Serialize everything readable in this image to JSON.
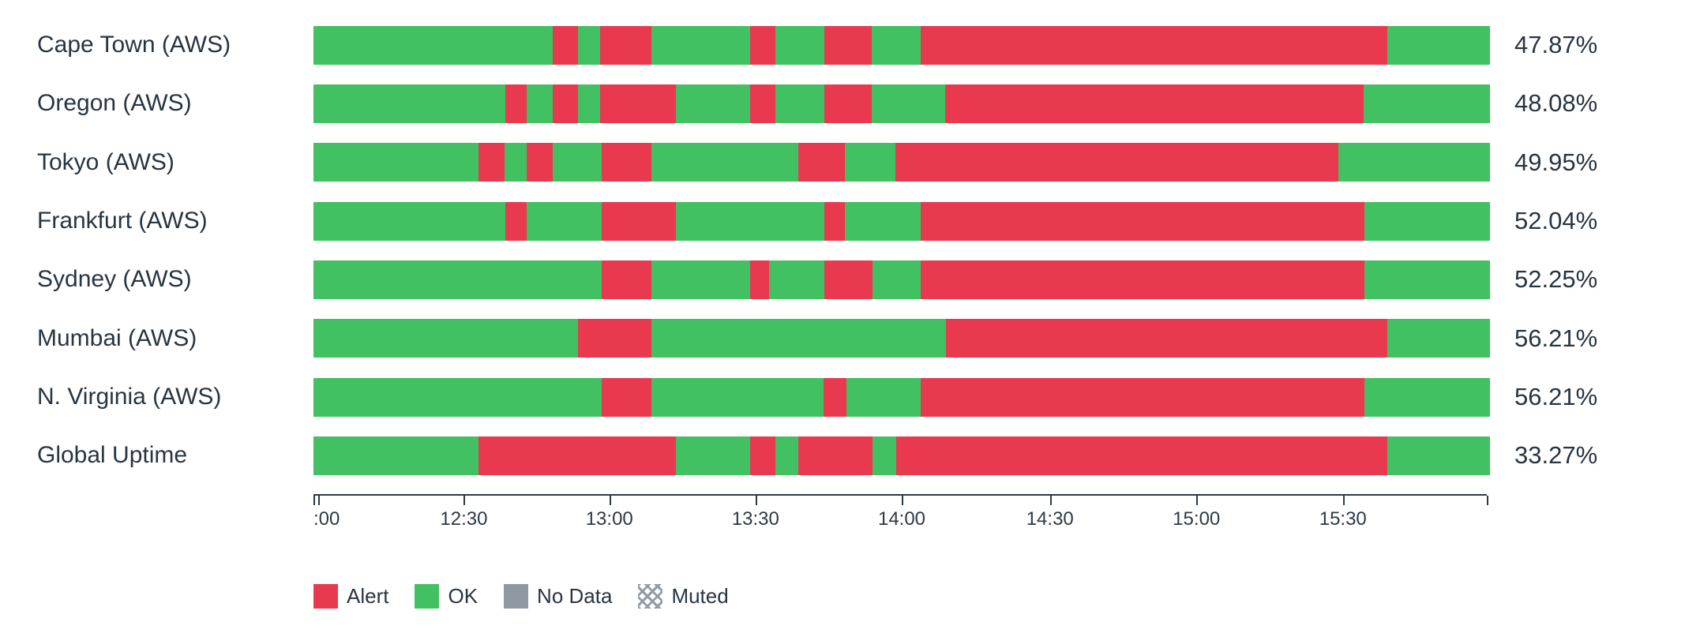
{
  "chart_data": {
    "type": "bar",
    "subtype": "status-timeline",
    "title": "",
    "xlabel": "",
    "ylabel": "",
    "x_axis": {
      "start": "12:00",
      "end": "16:00",
      "ticks": [
        {
          "pct": 0,
          "label": "",
          "cap": true
        },
        {
          "pct": 0.37,
          "label": ":00",
          "align": "start"
        },
        {
          "pct": 12.78,
          "label": "12:30"
        },
        {
          "pct": 25.15,
          "label": "13:00"
        },
        {
          "pct": 37.57,
          "label": "13:30"
        },
        {
          "pct": 50.0,
          "label": "14:00"
        },
        {
          "pct": 62.6,
          "label": "14:30"
        },
        {
          "pct": 75.05,
          "label": "15:00"
        },
        {
          "pct": 87.5,
          "label": "15:30"
        },
        {
          "pct": 99.75,
          "label": "",
          "cap": true
        }
      ]
    },
    "rows": [
      {
        "label": "Cape Town (AWS)",
        "uptime": "47.87%",
        "segments": [
          {
            "status": "ok",
            "pct": 20.33
          },
          {
            "status": "alert",
            "pct": 2.15
          },
          {
            "status": "ok",
            "pct": 1.86
          },
          {
            "status": "alert",
            "pct": 4.41
          },
          {
            "status": "ok",
            "pct": 8.35
          },
          {
            "status": "alert",
            "pct": 2.18
          },
          {
            "status": "ok",
            "pct": 4.14
          },
          {
            "status": "alert",
            "pct": 4.02
          },
          {
            "status": "ok",
            "pct": 4.17
          },
          {
            "status": "alert",
            "pct": 39.66
          },
          {
            "status": "ok",
            "pct": 8.73
          }
        ]
      },
      {
        "label": "Oregon (AWS)",
        "uptime": "48.08%",
        "segments": [
          {
            "status": "ok",
            "pct": 16.32
          },
          {
            "status": "alert",
            "pct": 1.83
          },
          {
            "status": "ok",
            "pct": 2.18
          },
          {
            "status": "alert",
            "pct": 2.15
          },
          {
            "status": "ok",
            "pct": 1.86
          },
          {
            "status": "alert",
            "pct": 6.49
          },
          {
            "status": "ok",
            "pct": 6.27
          },
          {
            "status": "alert",
            "pct": 2.18
          },
          {
            "status": "ok",
            "pct": 4.14
          },
          {
            "status": "alert",
            "pct": 4.02
          },
          {
            "status": "ok",
            "pct": 6.26
          },
          {
            "status": "alert",
            "pct": 35.59
          },
          {
            "status": "ok",
            "pct": 10.71
          }
        ]
      },
      {
        "label": "Tokyo (AWS)",
        "uptime": "49.95%",
        "segments": [
          {
            "status": "ok",
            "pct": 14.04
          },
          {
            "status": "alert",
            "pct": 2.19
          },
          {
            "status": "ok",
            "pct": 1.86
          },
          {
            "status": "alert",
            "pct": 2.24
          },
          {
            "status": "ok",
            "pct": 4.18
          },
          {
            "status": "alert",
            "pct": 4.24
          },
          {
            "status": "ok",
            "pct": 12.46
          },
          {
            "status": "alert",
            "pct": 3.99
          },
          {
            "status": "ok",
            "pct": 4.27
          },
          {
            "status": "alert",
            "pct": 37.64
          },
          {
            "status": "ok",
            "pct": 12.89
          }
        ]
      },
      {
        "label": "Frankfurt (AWS)",
        "uptime": "52.04%",
        "segments": [
          {
            "status": "ok",
            "pct": 16.32
          },
          {
            "status": "alert",
            "pct": 1.83
          },
          {
            "status": "ok",
            "pct": 6.36
          },
          {
            "status": "alert",
            "pct": 6.32
          },
          {
            "status": "ok",
            "pct": 12.59
          },
          {
            "status": "alert",
            "pct": 1.78
          },
          {
            "status": "ok",
            "pct": 6.41
          },
          {
            "status": "alert",
            "pct": 37.74
          },
          {
            "status": "ok",
            "pct": 10.65
          }
        ]
      },
      {
        "label": "Sydney (AWS)",
        "uptime": "52.25%",
        "segments": [
          {
            "status": "ok",
            "pct": 24.51
          },
          {
            "status": "alert",
            "pct": 4.24
          },
          {
            "status": "ok",
            "pct": 8.35
          },
          {
            "status": "alert",
            "pct": 1.61
          },
          {
            "status": "ok",
            "pct": 4.71
          },
          {
            "status": "alert",
            "pct": 4.12
          },
          {
            "status": "ok",
            "pct": 4.07
          },
          {
            "status": "alert",
            "pct": 37.74
          },
          {
            "status": "ok",
            "pct": 10.65
          }
        ]
      },
      {
        "label": "Mumbai (AWS)",
        "uptime": "56.21%",
        "segments": [
          {
            "status": "ok",
            "pct": 22.48
          },
          {
            "status": "alert",
            "pct": 6.27
          },
          {
            "status": "ok",
            "pct": 25.02
          },
          {
            "status": "alert",
            "pct": 37.5
          },
          {
            "status": "ok",
            "pct": 8.73
          }
        ]
      },
      {
        "label": "N. Virginia (AWS)",
        "uptime": "56.21%",
        "segments": [
          {
            "status": "ok",
            "pct": 24.51
          },
          {
            "status": "alert",
            "pct": 4.24
          },
          {
            "status": "ok",
            "pct": 14.61
          },
          {
            "status": "alert",
            "pct": 1.93
          },
          {
            "status": "ok",
            "pct": 6.32
          },
          {
            "status": "alert",
            "pct": 37.74
          },
          {
            "status": "ok",
            "pct": 10.65
          }
        ]
      },
      {
        "label": "Global Uptime",
        "uptime": "33.27%",
        "segments": [
          {
            "status": "ok",
            "pct": 14.04
          },
          {
            "status": "alert",
            "pct": 16.79
          },
          {
            "status": "ok",
            "pct": 6.27
          },
          {
            "status": "alert",
            "pct": 2.18
          },
          {
            "status": "ok",
            "pct": 1.93
          },
          {
            "status": "alert",
            "pct": 6.33
          },
          {
            "status": "ok",
            "pct": 1.99
          },
          {
            "status": "alert",
            "pct": 41.74
          },
          {
            "status": "ok",
            "pct": 8.73
          }
        ]
      }
    ],
    "legend": [
      {
        "label": "Alert",
        "swatch": "alert"
      },
      {
        "label": "OK",
        "swatch": "ok"
      },
      {
        "label": "No Data",
        "swatch": "nodata"
      },
      {
        "label": "Muted",
        "swatch": "muted"
      }
    ],
    "legend_position": "bottom-left",
    "grid": false,
    "colors": {
      "alert": "#e8394e",
      "ok": "#42c162",
      "no_data": "#8e98a3",
      "muted_hatch": "#929ca7",
      "text": "#273541",
      "axis": "#2c3a47",
      "background": "#ffffff"
    }
  }
}
